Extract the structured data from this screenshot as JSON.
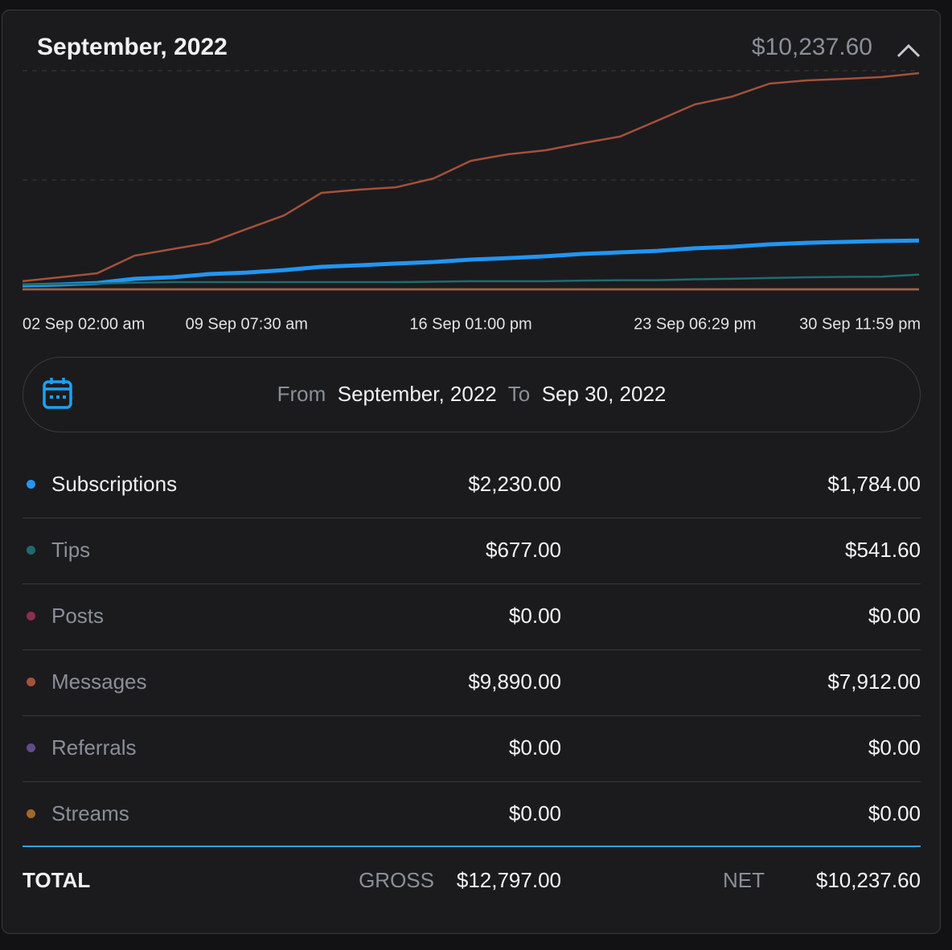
{
  "header": {
    "title": "September, 2022",
    "total": "$10,237.60"
  },
  "chart_data": {
    "type": "line",
    "x_labels": [
      "02 Sep 02:00 am",
      "09 Sep 07:30 am",
      "16 Sep 01:00 pm",
      "23 Sep 06:29 pm",
      "30 Sep 11:59 pm"
    ],
    "ylim": [
      0,
      10000
    ],
    "ygrid": [
      0,
      5000,
      10000
    ],
    "series": [
      {
        "name": "Subscriptions",
        "color": "#2196f3",
        "values": [
          180,
          220,
          290,
          480,
          550,
          700,
          770,
          880,
          1030,
          1100,
          1180,
          1250,
          1360,
          1430,
          1510,
          1620,
          1690,
          1760,
          1880,
          1950,
          2060,
          2130,
          2170,
          2210,
          2230
        ]
      },
      {
        "name": "Tips",
        "color": "#1f6b70",
        "values": [
          220,
          240,
          260,
          300,
          330,
          330,
          330,
          330,
          330,
          330,
          330,
          350,
          370,
          370,
          370,
          400,
          420,
          420,
          460,
          480,
          520,
          550,
          570,
          580,
          677
        ]
      },
      {
        "name": "Posts",
        "color": "#8c2f4c",
        "values": [
          0,
          0,
          0,
          0,
          0,
          0,
          0,
          0,
          0,
          0,
          0,
          0,
          0,
          0,
          0,
          0,
          0,
          0,
          0,
          0,
          0,
          0,
          0,
          0,
          0
        ]
      },
      {
        "name": "Messages",
        "color": "#a4513b",
        "values": [
          370,
          550,
          735,
          1540,
          1840,
          2130,
          2760,
          3380,
          4410,
          4560,
          4670,
          5070,
          5880,
          6180,
          6360,
          6690,
          6990,
          7720,
          8460,
          8820,
          9410,
          9560,
          9630,
          9710,
          9890
        ]
      },
      {
        "name": "Referrals",
        "color": "#5f4b8b",
        "values": [
          0,
          0,
          0,
          0,
          0,
          0,
          0,
          0,
          0,
          0,
          0,
          0,
          0,
          0,
          0,
          0,
          0,
          0,
          0,
          0,
          0,
          0,
          0,
          0,
          0
        ]
      },
      {
        "name": "Streams",
        "color": "#a3662b",
        "values": [
          0,
          0,
          0,
          0,
          0,
          0,
          0,
          0,
          0,
          0,
          0,
          0,
          0,
          0,
          0,
          0,
          0,
          0,
          0,
          0,
          0,
          0,
          0,
          0,
          0
        ]
      }
    ]
  },
  "date_range": {
    "from_label": "From",
    "from": "September, 2022",
    "to_label": "To",
    "to": "Sep 30, 2022"
  },
  "breakdown": [
    {
      "gross": "$2,230.00",
      "net": "$1,784.00"
    },
    {
      "gross": "$677.00",
      "net": "$541.60"
    },
    {
      "gross": "$0.00",
      "net": "$0.00"
    },
    {
      "gross": "$9,890.00",
      "net": "$7,912.00"
    },
    {
      "gross": "$0.00",
      "net": "$0.00"
    },
    {
      "gross": "$0.00",
      "net": "$0.00"
    }
  ],
  "total": {
    "label": "TOTAL",
    "gross_label": "GROSS",
    "gross": "$12,797.00",
    "net_label": "NET",
    "net": "$10,237.60"
  }
}
